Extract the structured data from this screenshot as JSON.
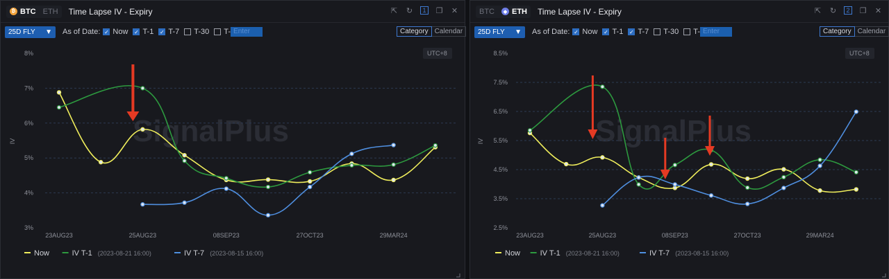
{
  "colors": {
    "now": "#f0ee5c",
    "t1": "#2d9a3f",
    "t7": "#4f8fe0",
    "arrow": "#e53a23",
    "grid": "#2c3a52"
  },
  "icons": [
    "external-link-icon",
    "refresh-icon",
    "window-number-icon",
    "duplicate-icon",
    "close-icon"
  ],
  "panels": [
    {
      "coins": [
        {
          "label": "BTC",
          "active": true
        },
        {
          "label": "ETH",
          "active": false
        }
      ],
      "window_num": "1",
      "title": "Time Lapse IV - Expiry",
      "select_label": "25D FLY",
      "as_of_label": "As of Date:",
      "checks": [
        {
          "label": "Now",
          "checked": true
        },
        {
          "label": "T-1",
          "checked": true
        },
        {
          "label": "T-7",
          "checked": true
        },
        {
          "label": "T-30",
          "checked": false
        },
        {
          "label": "T-",
          "checked": false
        }
      ],
      "enter_placeholder": "Enter",
      "view_category": "Category",
      "view_calendar": "Calendar",
      "utc": "UTC+8",
      "watermark": "SignalPlus"
    },
    {
      "coins": [
        {
          "label": "BTC",
          "active": false
        },
        {
          "label": "ETH",
          "active": true
        }
      ],
      "window_num": "2",
      "title": "Time Lapse IV - Expiry",
      "select_label": "25D FLY",
      "as_of_label": "As of Date:",
      "checks": [
        {
          "label": "Now",
          "checked": true
        },
        {
          "label": "T-1",
          "checked": true
        },
        {
          "label": "T-7",
          "checked": true
        },
        {
          "label": "T-30",
          "checked": false
        },
        {
          "label": "T-",
          "checked": false
        }
      ],
      "enter_placeholder": "Enter",
      "view_category": "Category",
      "view_calendar": "Calendar",
      "utc": "UTC+8",
      "watermark": "SignalPlus"
    }
  ],
  "chart_data": [
    {
      "type": "line",
      "ylabel": "IV",
      "yticks": [
        "8%",
        "7%",
        "6%",
        "5%",
        "4%",
        "3%"
      ],
      "ylim": [
        3,
        8
      ],
      "xtick_labels": [
        {
          "label": "23AUG23",
          "index": 0
        },
        {
          "label": "25AUG23",
          "index": 2
        },
        {
          "label": "08SEP23",
          "index": 4
        },
        {
          "label": "27OCT23",
          "index": 6
        },
        {
          "label": "29MAR24",
          "index": 8
        }
      ],
      "n_points": 10,
      "series": [
        {
          "name": "Now",
          "key": "now",
          "start": 0,
          "values": [
            6.88,
            4.88,
            5.82,
            5.08,
            4.37,
            4.38,
            4.33,
            4.84,
            4.37,
            5.31
          ]
        },
        {
          "name": "IV T-1",
          "key": "t1",
          "date": "(2023-08-21 16:00)",
          "start": 0,
          "values": [
            6.45,
            null,
            7.0,
            4.92,
            4.42,
            4.17,
            4.59,
            4.79,
            4.81,
            5.36
          ]
        },
        {
          "name": "IV T-7",
          "key": "t7",
          "date": "(2023-08-15 16:00)",
          "start": 2,
          "values": [
            3.67,
            3.72,
            4.12,
            3.36,
            4.17,
            5.12,
            5.37
          ]
        }
      ],
      "grid": true,
      "legend": "bottom-left",
      "annotations": [
        {
          "type": "arrow",
          "at_x_index": 2,
          "direction": "down"
        }
      ]
    },
    {
      "type": "line",
      "ylabel": "IV",
      "yticks": [
        "8.5%",
        "7.5%",
        "6.5%",
        "5.5%",
        "4.5%",
        "3.5%",
        "2.5%"
      ],
      "ylim": [
        2.5,
        8.5
      ],
      "xtick_labels": [
        {
          "label": "23AUG23",
          "index": 0
        },
        {
          "label": "25AUG23",
          "index": 2
        },
        {
          "label": "08SEP23",
          "index": 4
        },
        {
          "label": "27OCT23",
          "index": 6
        },
        {
          "label": "29MAR24",
          "index": 8
        }
      ],
      "n_points": 10,
      "series": [
        {
          "name": "Now",
          "key": "now",
          "start": 0,
          "values": [
            5.76,
            4.69,
            4.92,
            4.23,
            3.87,
            4.68,
            4.19,
            4.51,
            3.78,
            3.82
          ]
        },
        {
          "name": "IV T-1",
          "key": "t1",
          "date": "(2023-08-21 16:00)",
          "start": 0,
          "values": [
            5.85,
            null,
            7.35,
            3.99,
            4.66,
            5.17,
            3.88,
            4.24,
            4.84,
            4.41
          ]
        },
        {
          "name": "IV T-7",
          "key": "t7",
          "date": "(2023-08-15 16:00)",
          "start": 2,
          "values": [
            3.27,
            4.23,
            3.99,
            3.61,
            3.32,
            3.87,
            4.63,
            6.49
          ]
        }
      ],
      "grid": true,
      "legend": "bottom-left",
      "annotations": [
        {
          "type": "arrow",
          "at_x_index": 2,
          "direction": "down"
        },
        {
          "type": "arrow",
          "at_x_index": 4,
          "direction": "down"
        },
        {
          "type": "arrow",
          "at_x_index": 5,
          "direction": "down"
        }
      ]
    }
  ]
}
